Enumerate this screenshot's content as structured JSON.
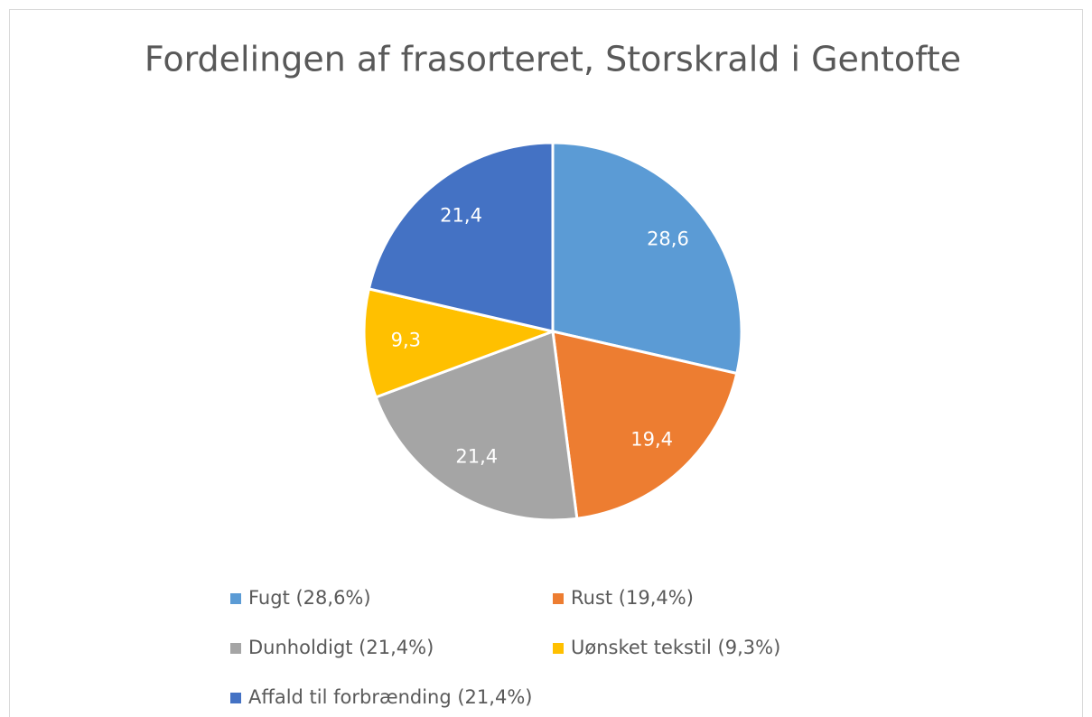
{
  "chart_data": {
    "type": "pie",
    "title": "Fordelingen af frasorteret, Storskrald i Gentofte",
    "categories": [
      "Fugt (28,6%)",
      "Rust (19,4%)",
      "Dunholdigt (21,4%)",
      "Uønsket tekstil (9,3%)",
      "Affald til forbrænding (21,4%)"
    ],
    "values": [
      28.6,
      19.4,
      21.4,
      9.3,
      21.4
    ],
    "value_labels": [
      "28,6",
      "19,4",
      "21,4",
      "9,3",
      "21,4"
    ],
    "colors": [
      "#5b9bd5",
      "#ed7d31",
      "#a5a5a5",
      "#ffc000",
      "#4472c4"
    ],
    "legend": "bottom"
  }
}
